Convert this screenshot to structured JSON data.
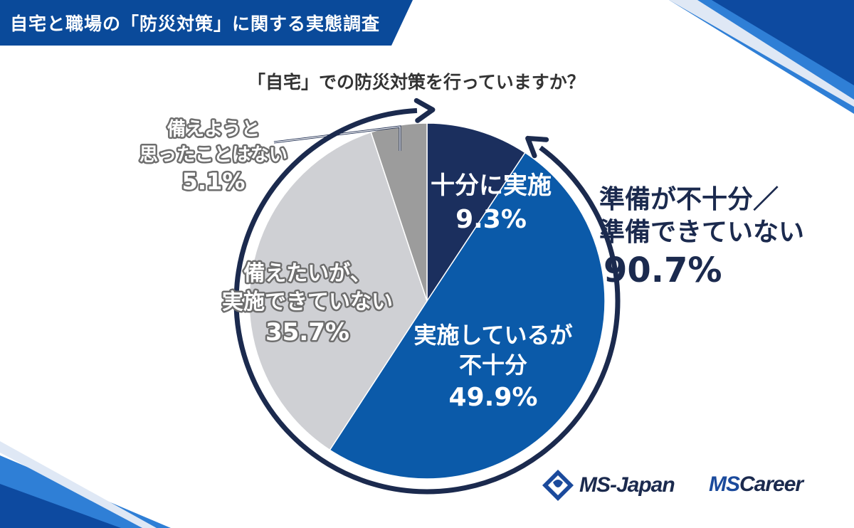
{
  "header": {
    "title": "自宅と職場の「防災対策」に関する実態調査"
  },
  "question": "「自宅」での防災対策を行っていますか？",
  "colors": {
    "dark_navy": "#1b2f5e",
    "blue": "#0b5aa9",
    "light_gray": "#cfd0d4",
    "mid_gray": "#9c9c9c",
    "arrow": "#1b2a4e",
    "header": "#0a4a9a"
  },
  "chart_data": {
    "type": "pie",
    "start_angle_deg": 0,
    "direction": "clockwise",
    "slices": [
      {
        "label_lines": [
          "十分に実施"
        ],
        "value": 9.3,
        "value_text": "9.3%",
        "color": "#1b2f5e"
      },
      {
        "label_lines": [
          "実施しているが",
          "不十分"
        ],
        "value": 49.9,
        "value_text": "49.9%",
        "color": "#0b5aa9"
      },
      {
        "label_lines": [
          "備えたいが、",
          "実施できていない"
        ],
        "value": 35.7,
        "value_text": "35.7%",
        "color": "#cfd0d4"
      },
      {
        "label_lines": [
          "備えようと",
          "思ったことはない"
        ],
        "value": 5.1,
        "value_text": "5.1%",
        "color": "#9c9c9c"
      }
    ],
    "annotation": {
      "lines": [
        "準備が不十分／",
        "準備できていない"
      ],
      "value_text": "90.7%"
    }
  },
  "logos": {
    "ms_japan": "MS-Japan",
    "ms_career_ms": "MS",
    "ms_career_rest": "Career"
  }
}
